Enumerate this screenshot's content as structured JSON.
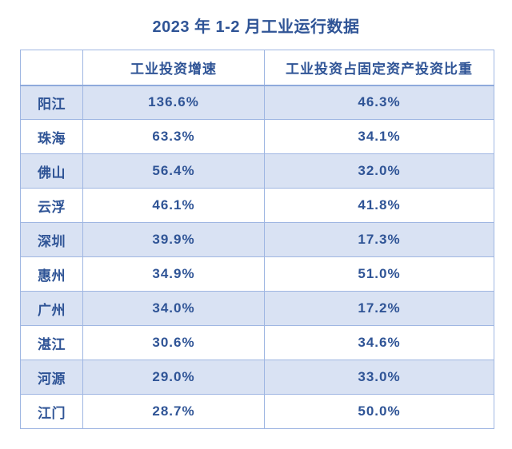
{
  "page_title": "2023 年 1-2 月工业运行数据",
  "colors": {
    "text_blue": "#2F5496",
    "border_blue": "#9FB6E2",
    "header_rule_blue": "#8FAADC",
    "row_shade_blue": "#D9E2F3",
    "background": "#FFFFFF"
  },
  "chart_data": {
    "type": "table",
    "title": "2023 年 1-2 月工业运行数据",
    "columns": [
      "",
      "工业投资增速",
      "工业投资占固定资产投资比重"
    ],
    "rows": [
      {
        "city": "阳江",
        "growth": "136.6%",
        "share": "46.3%"
      },
      {
        "city": "珠海",
        "growth": "63.3%",
        "share": "34.1%"
      },
      {
        "city": "佛山",
        "growth": "56.4%",
        "share": "32.0%"
      },
      {
        "city": "云浮",
        "growth": "46.1%",
        "share": "41.8%"
      },
      {
        "city": "深圳",
        "growth": "39.9%",
        "share": "17.3%"
      },
      {
        "city": "惠州",
        "growth": "34.9%",
        "share": "51.0%"
      },
      {
        "city": "广州",
        "growth": "34.0%",
        "share": "17.2%"
      },
      {
        "city": "湛江",
        "growth": "30.6%",
        "share": "34.6%"
      },
      {
        "city": "河源",
        "growth": "29.0%",
        "share": "33.0%"
      },
      {
        "city": "江门",
        "growth": "28.7%",
        "share": "50.0%"
      }
    ],
    "layout": {
      "alternating_row_shading": true,
      "shaded_rows": "odd (1st, 3rd, 5th, 7th, 9th)",
      "value_alignment": "center"
    }
  }
}
